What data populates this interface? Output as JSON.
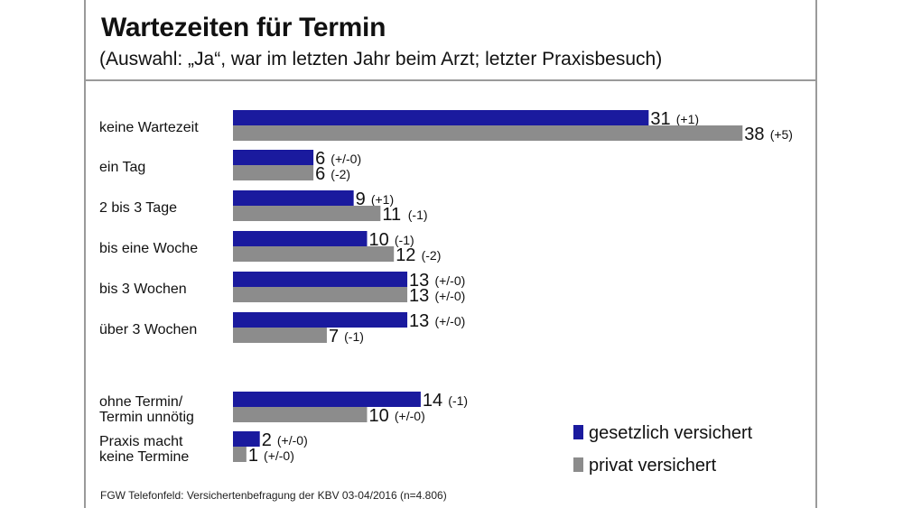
{
  "title": "Wartezeiten für Termin",
  "subtitle": "(Auswahl: „Ja“, war im letzten Jahr beim Arzt; letzter Praxisbesuch)",
  "source": "FGW Telefonfeld: Versichertenbefragung der KBV 03-04/2016 (n=4.806)",
  "chart_data": {
    "type": "bar",
    "orientation": "horizontal",
    "title": "Wartezeiten für Termin",
    "subtitle": "(Auswahl: „Ja“, war im letzten Jahr beim Arzt; letzter Praxisbesuch)",
    "categories": [
      [
        "keine Wartezeit"
      ],
      [
        "ein Tag"
      ],
      [
        "2 bis 3 Tage"
      ],
      [
        "bis eine Woche"
      ],
      [
        "bis 3 Wochen"
      ],
      [
        "über 3 Wochen"
      ],
      [
        "ohne Termin/",
        "Termin unnötig"
      ],
      [
        "Praxis macht",
        "keine Termine"
      ]
    ],
    "series": [
      {
        "name": "gesetzlich versichert",
        "color": "#1a1a9e",
        "values": [
          31,
          6,
          9,
          10,
          13,
          13,
          14,
          2
        ],
        "changes": [
          "(+1)",
          "(+/-0)",
          "(+1)",
          "(-1)",
          "(+/-0)",
          "(+/-0)",
          "(-1)",
          "(+/-0)"
        ]
      },
      {
        "name": "privat versichert",
        "color": "#8c8c8c",
        "values": [
          38,
          6,
          11,
          12,
          13,
          7,
          10,
          1
        ],
        "changes": [
          "(+5)",
          "(-2)",
          "(-1)",
          "(-2)",
          "(+/-0)",
          "(-1)",
          "(+/-0)",
          "(+/-0)"
        ]
      }
    ],
    "xlim": [
      0,
      40
    ],
    "legend": "bottom-right"
  }
}
